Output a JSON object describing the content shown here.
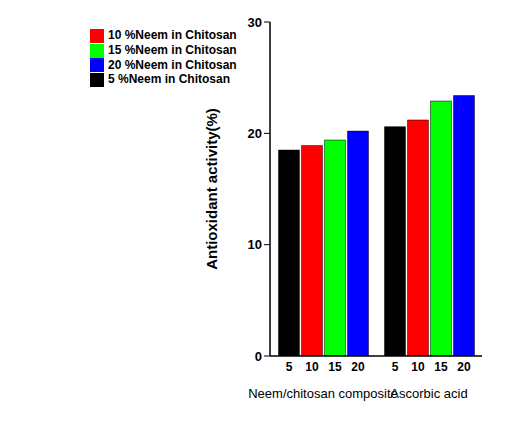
{
  "chart_data": {
    "type": "bar",
    "y_label": "Antioxidant activity(%)",
    "categories": [
      "Neem/chitosan composite",
      "Ascorbic acid"
    ],
    "series": [
      {
        "name": "5 %Neem in Chitosan",
        "label": "5",
        "color": "#000000",
        "values": [
          18.5,
          20.6
        ]
      },
      {
        "name": "10 %Neem in Chitosan",
        "label": "10",
        "color": "#ff0000",
        "values": [
          18.9,
          21.2
        ]
      },
      {
        "name": "15 %Neem in Chitosan",
        "label": "15",
        "color": "#00ff00",
        "values": [
          19.4,
          22.9
        ]
      },
      {
        "name": "20 %Neem in Chitosan",
        "label": "20",
        "color": "#0000ff",
        "values": [
          20.2,
          23.4
        ]
      }
    ],
    "ylim": [
      0,
      30
    ],
    "yticks": [
      0,
      10,
      20,
      30
    ],
    "grid": false,
    "legend": "top-left"
  }
}
